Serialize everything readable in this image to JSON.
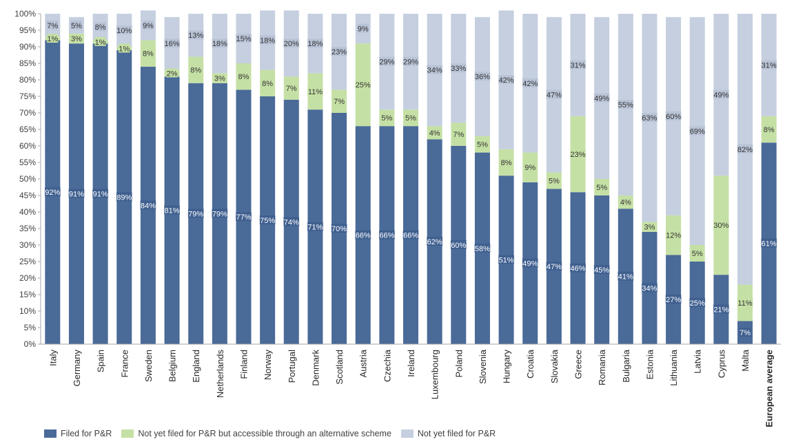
{
  "chart_data": {
    "type": "bar",
    "stacked": true,
    "categories": [
      "Italy",
      "Germany",
      "Spain",
      "France",
      "Sweden",
      "Belgium",
      "England",
      "Netherlands",
      "Finland",
      "Norway",
      "Portugal",
      "Denmark",
      "Scotland",
      "Austria",
      "Czechia",
      "Ireland",
      "Luxembourg",
      "Poland",
      "Slovenia",
      "Hungary",
      "Croatia",
      "Slovakia",
      "Greece",
      "Romania",
      "Bulgaria",
      "Estonia",
      "Lithuania",
      "Latvia",
      "Cyprus",
      "Malta",
      "European average"
    ],
    "series": [
      {
        "name": "Filed for P&R",
        "color": "#4a6a98",
        "values": [
          92,
          91,
          91,
          89,
          84,
          81,
          79,
          79,
          77,
          75,
          74,
          71,
          70,
          66,
          66,
          66,
          62,
          60,
          58,
          51,
          49,
          47,
          46,
          45,
          41,
          34,
          27,
          25,
          21,
          7,
          61
        ],
        "labels": [
          "92%",
          "91%",
          "91%",
          "89%",
          "84%",
          "81%",
          "79%",
          "79%",
          "77%",
          "75%",
          "74%",
          "71%",
          "70%",
          "66%",
          "66%",
          "66%",
          "62%",
          "60%",
          "58%",
          "51%",
          "49%",
          "47%",
          "46%",
          "45%",
          "41%",
          "34%",
          "27%",
          "25%",
          "21%",
          "7%",
          "61%"
        ]
      },
      {
        "name": "Not yet filed for P&R but accessible through an alternative scheme",
        "color": "#c5e0a5",
        "values": [
          1,
          3,
          1,
          1,
          8,
          2,
          8,
          3,
          8,
          8,
          7,
          11,
          7,
          25,
          5,
          5,
          4,
          7,
          5,
          8,
          9,
          5,
          23,
          5,
          4,
          3,
          12,
          5,
          30,
          11,
          8
        ],
        "labels": [
          "1%",
          "3%",
          "1%",
          "1%",
          "8%",
          "2%",
          "8%",
          "3%",
          "8%",
          "8%",
          "7%",
          "11%",
          "7%",
          "25%",
          "5%",
          "5%",
          "4%",
          "7%",
          "5%",
          "8%",
          "9%",
          "5%",
          "23%",
          "5%",
          "4%",
          "3%",
          "12%",
          "5%",
          "30%",
          "11%",
          "8%"
        ]
      },
      {
        "name": "Not yet filed for P&R",
        "color": "#c5cfe0",
        "values": [
          7,
          5,
          8,
          10,
          9,
          16,
          13,
          18,
          15,
          18,
          20,
          18,
          23,
          9,
          29,
          29,
          34,
          33,
          36,
          42,
          42,
          47,
          31,
          49,
          55,
          63,
          60,
          69,
          49,
          82,
          31
        ],
        "labels": [
          "7%",
          "5%",
          "8%",
          "10%",
          "9%",
          "16%",
          "13%",
          "18%",
          "15%",
          "18%",
          "20%",
          "18%",
          "23%",
          "9%",
          "29%",
          "29%",
          "34%",
          "33%",
          "36%",
          "42%",
          "42%",
          "47%",
          "31%",
          "49%",
          "55%",
          "63%",
          "60%",
          "69%",
          "49%",
          "82%",
          "31%"
        ]
      }
    ],
    "yticks": [
      "0%",
      "5%",
      "10%",
      "15%",
      "20%",
      "25%",
      "30%",
      "35%",
      "40%",
      "45%",
      "50%",
      "55%",
      "60%",
      "65%",
      "70%",
      "75%",
      "80%",
      "85%",
      "90%",
      "95%",
      "100%"
    ],
    "ylim": [
      0,
      100
    ],
    "highlight_category": "European average",
    "legend_position": "bottom-left",
    "grid": false
  }
}
